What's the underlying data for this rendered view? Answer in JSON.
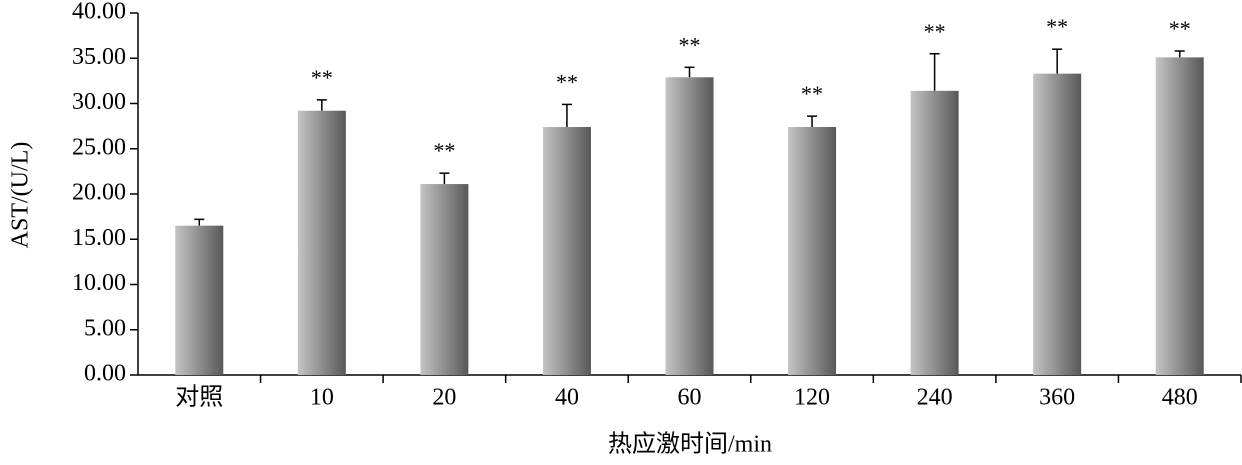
{
  "chart_data": {
    "type": "bar",
    "ylabel": "AST/(U/L)",
    "xlabel": "热应激时间/min",
    "categories": [
      "对照",
      "10",
      "20",
      "40",
      "60",
      "120",
      "240",
      "360",
      "480"
    ],
    "values": [
      16.5,
      29.2,
      21.1,
      27.4,
      32.9,
      27.4,
      31.4,
      33.3,
      35.1
    ],
    "errors": [
      0.7,
      1.2,
      1.2,
      2.5,
      1.1,
      1.2,
      4.1,
      2.7,
      0.7
    ],
    "annotations": [
      null,
      "**",
      "**",
      "**",
      "**",
      "**",
      "**",
      "**",
      "**"
    ],
    "gradient": [
      "#c4c4c4",
      "#585858"
    ],
    "ylim": [
      0,
      40
    ],
    "yticks": [
      {
        "value": 0,
        "label": "0.00"
      },
      {
        "value": 5,
        "label": "5.00"
      },
      {
        "value": 10,
        "label": "10.00"
      },
      {
        "value": 15,
        "label": "15.00"
      },
      {
        "value": 20,
        "label": "20.00"
      },
      {
        "value": 25,
        "label": "25.00"
      },
      {
        "value": 30,
        "label": "30.00"
      },
      {
        "value": 35,
        "label": "35.00"
      },
      {
        "value": 40,
        "label": "40.00"
      }
    ]
  }
}
